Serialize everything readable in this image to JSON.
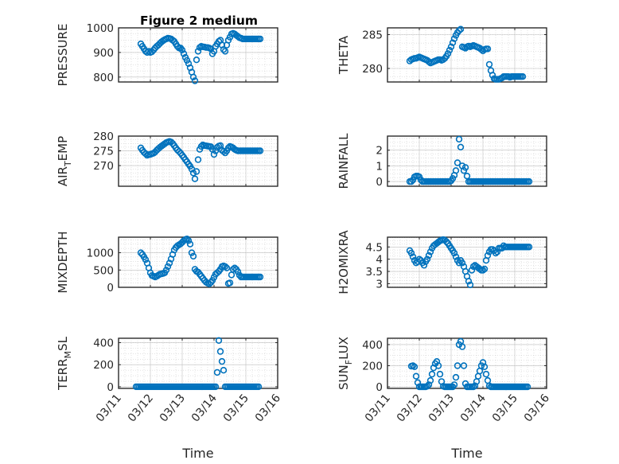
{
  "figure": {
    "title": "Figure 2 medium",
    "marker_color": "#0072bd",
    "x_date_ticks": [
      "03/11",
      "03/12",
      "03/13",
      "03/14",
      "03/15",
      "03/16"
    ],
    "x_label": "Time",
    "x_range": [
      0,
      5
    ]
  },
  "chart_data": [
    {
      "type": "scatter",
      "ylabel": "PRESSURE",
      "ylabel_sub": "",
      "ylim": [
        780,
        1000
      ],
      "yticks": [
        "800",
        "900",
        "1000"
      ],
      "ytick_values": [
        800,
        900,
        1000
      ],
      "grid": true,
      "x": [
        0.7,
        0.75,
        0.8,
        0.85,
        0.9,
        0.95,
        1.0,
        1.05,
        1.1,
        1.15,
        1.2,
        1.25,
        1.3,
        1.35,
        1.4,
        1.45,
        1.5,
        1.55,
        1.6,
        1.65,
        1.7,
        1.75,
        1.8,
        1.85,
        1.9,
        1.95,
        2.0,
        2.05,
        2.1,
        2.15,
        2.2,
        2.25,
        2.3,
        2.35,
        2.4,
        2.45,
        2.5,
        2.55,
        2.6,
        2.65,
        2.7,
        2.75,
        2.8,
        2.85,
        2.9,
        2.95,
        3.0,
        3.05,
        3.1,
        3.15,
        3.2,
        3.25,
        3.3,
        3.35,
        3.4,
        3.45,
        3.5,
        3.55,
        3.6,
        3.65,
        3.7,
        3.75,
        3.8,
        3.85,
        3.9,
        3.95,
        4.0,
        4.05,
        4.1,
        4.15,
        4.2,
        4.25,
        4.3,
        4.35,
        4.4,
        4.45
      ],
      "y": [
        935,
        925,
        915,
        905,
        900,
        905,
        900,
        903,
        910,
        918,
        925,
        930,
        937,
        943,
        948,
        952,
        955,
        958,
        957,
        955,
        950,
        945,
        935,
        925,
        918,
        918,
        910,
        895,
        880,
        868,
        855,
        838,
        820,
        800,
        785,
        870,
        905,
        920,
        925,
        923,
        922,
        920,
        920,
        918,
        915,
        895,
        905,
        925,
        935,
        945,
        950,
        930,
        912,
        905,
        930,
        950,
        962,
        975,
        978,
        975,
        970,
        965,
        960,
        958,
        955,
        955,
        955,
        955,
        955,
        955,
        955,
        955,
        955,
        955,
        955,
        955
      ]
    },
    {
      "type": "scatter",
      "ylabel": "THETA",
      "ylabel_sub": "",
      "ylim": [
        278,
        286
      ],
      "yticks": [
        "280",
        "285"
      ],
      "ytick_values": [
        280,
        285
      ],
      "grid": true,
      "x": [
        0.7,
        0.75,
        0.8,
        0.85,
        0.9,
        0.95,
        1.0,
        1.05,
        1.1,
        1.15,
        1.2,
        1.25,
        1.3,
        1.35,
        1.4,
        1.45,
        1.5,
        1.55,
        1.6,
        1.65,
        1.7,
        1.75,
        1.8,
        1.85,
        1.9,
        1.95,
        2.0,
        2.05,
        2.1,
        2.15,
        2.2,
        2.25,
        2.3,
        2.35,
        2.4,
        2.45,
        2.5,
        2.55,
        2.6,
        2.65,
        2.7,
        2.75,
        2.8,
        2.85,
        2.9,
        2.95,
        3.0,
        3.05,
        3.1,
        3.15,
        3.2,
        3.25,
        3.3,
        3.35,
        3.4,
        3.45,
        3.5,
        3.55,
        3.6,
        3.65,
        3.7,
        3.75,
        3.8,
        3.85,
        3.9,
        3.95,
        4.0,
        4.05,
        4.1,
        4.15,
        4.2,
        4.25
      ],
      "y": [
        281.1,
        281.3,
        281.4,
        281.5,
        281.5,
        281.6,
        281.7,
        281.6,
        281.5,
        281.4,
        281.3,
        281.2,
        281.0,
        280.8,
        280.9,
        281.0,
        281.1,
        281.2,
        281.3,
        281.3,
        281.2,
        281.3,
        281.5,
        281.8,
        282.2,
        282.7,
        283.2,
        283.8,
        284.4,
        284.9,
        285.3,
        285.6,
        285.8,
        283.2,
        283.1,
        283.0,
        283.2,
        283.3,
        283.2,
        283.3,
        283.4,
        283.3,
        283.2,
        283.1,
        283.0,
        282.8,
        282.6,
        282.8,
        282.9,
        282.9,
        280.6,
        279.7,
        279.0,
        278.5,
        278.4,
        278.4,
        278.4,
        278.5,
        278.6,
        278.8,
        278.8,
        278.8,
        278.8,
        278.7,
        278.8,
        278.8,
        278.8,
        278.8,
        278.8,
        278.8,
        278.8,
        278.8
      ]
    },
    {
      "type": "scatter",
      "ylabel": "AIR",
      "ylabel_sub": "T",
      "ylabel_rest": "EMP",
      "ylim": [
        263,
        280
      ],
      "yticks": [
        "270",
        "275",
        "280"
      ],
      "ytick_values": [
        270,
        275,
        280
      ],
      "grid": true,
      "x": [
        0.7,
        0.75,
        0.8,
        0.85,
        0.9,
        0.95,
        1.0,
        1.05,
        1.1,
        1.15,
        1.2,
        1.25,
        1.3,
        1.35,
        1.4,
        1.45,
        1.5,
        1.55,
        1.6,
        1.65,
        1.7,
        1.75,
        1.8,
        1.85,
        1.9,
        1.95,
        2.0,
        2.05,
        2.1,
        2.15,
        2.2,
        2.25,
        2.3,
        2.35,
        2.4,
        2.45,
        2.5,
        2.55,
        2.6,
        2.65,
        2.7,
        2.75,
        2.8,
        2.85,
        2.9,
        2.95,
        3.0,
        3.05,
        3.1,
        3.15,
        3.2,
        3.25,
        3.3,
        3.35,
        3.4,
        3.45,
        3.5,
        3.55,
        3.6,
        3.65,
        3.7,
        3.75,
        3.8,
        3.85,
        3.9,
        3.95,
        4.0,
        4.05,
        4.1,
        4.15,
        4.2,
        4.25,
        4.3,
        4.35,
        4.4,
        4.45
      ],
      "y": [
        276.0,
        275.2,
        274.5,
        274.0,
        273.5,
        273.7,
        273.8,
        274.0,
        274.2,
        274.6,
        275.2,
        275.7,
        276.2,
        276.6,
        277.0,
        277.4,
        277.8,
        278.0,
        278.2,
        278.0,
        277.5,
        276.8,
        276.0,
        275.3,
        274.8,
        274.2,
        273.5,
        272.8,
        272.0,
        271.3,
        270.5,
        269.8,
        268.8,
        267.5,
        265.5,
        268.0,
        272.0,
        275.5,
        276.5,
        277.0,
        276.8,
        276.7,
        276.6,
        276.5,
        276.4,
        275.5,
        273.8,
        275.0,
        276.2,
        276.6,
        276.8,
        275.2,
        274.8,
        274.3,
        275.0,
        276.0,
        276.5,
        276.3,
        276.0,
        275.5,
        275.2,
        275.0,
        275.0,
        275.0,
        275.0,
        275.0,
        275.0,
        275.0,
        275.0,
        275.0,
        275.0,
        275.0,
        275.0,
        275.0,
        275.0,
        275.0
      ]
    },
    {
      "type": "scatter",
      "ylabel": "RAINFALL",
      "ylabel_sub": "",
      "ylim": [
        -0.3,
        2.9
      ],
      "yticks": [
        "0",
        "1",
        "2"
      ],
      "ytick_values": [
        0,
        1,
        2
      ],
      "grid": true,
      "x": [
        0.7,
        0.75,
        0.8,
        0.85,
        0.9,
        0.95,
        1.0,
        1.05,
        1.1,
        1.15,
        1.2,
        1.25,
        1.3,
        1.35,
        1.4,
        1.45,
        1.5,
        1.55,
        1.6,
        1.65,
        1.7,
        1.75,
        1.8,
        1.85,
        1.9,
        1.95,
        2.0,
        2.05,
        2.1,
        2.15,
        2.2,
        2.25,
        2.3,
        2.35,
        2.4,
        2.45,
        2.5,
        2.55,
        2.6,
        2.65,
        2.7,
        2.75,
        2.8,
        2.85,
        2.9,
        2.95,
        3.0,
        3.05,
        3.1,
        3.15,
        3.2,
        3.25,
        3.3,
        3.35,
        3.4,
        3.45,
        3.5,
        3.55,
        3.6,
        3.65,
        3.7,
        3.75,
        3.8,
        3.85,
        3.9,
        3.95,
        4.0,
        4.05,
        4.1,
        4.15,
        4.2,
        4.25,
        4.3,
        4.35,
        4.4,
        4.45
      ],
      "y": [
        0,
        0,
        0.1,
        0.3,
        0.35,
        0.35,
        0.3,
        0.1,
        0,
        0,
        0,
        0,
        0,
        0,
        0,
        0,
        0,
        0,
        0,
        0,
        0,
        0,
        0,
        0,
        0,
        0,
        0.05,
        0.2,
        0.4,
        0.7,
        1.2,
        2.7,
        2.2,
        1.0,
        0.7,
        0.9,
        0.35,
        0,
        0,
        0,
        0,
        0,
        0,
        0,
        0,
        0,
        0,
        0,
        0,
        0,
        0,
        0,
        0,
        0,
        0,
        0,
        0,
        0,
        0,
        0,
        0,
        0,
        0,
        0,
        0,
        0,
        0,
        0,
        0,
        0,
        0,
        0,
        0,
        0,
        0,
        0
      ]
    },
    {
      "type": "scatter",
      "ylabel": "MIXDEPTH",
      "ylabel_sub": "",
      "ylim": [
        0,
        1450
      ],
      "yticks": [
        "0",
        "500",
        "1000"
      ],
      "ytick_values": [
        0,
        500,
        1000
      ],
      "grid": true,
      "x": [
        0.7,
        0.75,
        0.8,
        0.85,
        0.9,
        0.95,
        1.0,
        1.05,
        1.1,
        1.15,
        1.2,
        1.25,
        1.3,
        1.35,
        1.4,
        1.45,
        1.5,
        1.55,
        1.6,
        1.65,
        1.7,
        1.75,
        1.8,
        1.85,
        1.9,
        1.95,
        2.0,
        2.05,
        2.1,
        2.15,
        2.2,
        2.25,
        2.3,
        2.35,
        2.4,
        2.45,
        2.5,
        2.55,
        2.6,
        2.65,
        2.7,
        2.75,
        2.8,
        2.85,
        2.9,
        2.95,
        3.0,
        3.05,
        3.1,
        3.15,
        3.2,
        3.25,
        3.3,
        3.35,
        3.4,
        3.45,
        3.5,
        3.55,
        3.6,
        3.65,
        3.7,
        3.75,
        3.8,
        3.85,
        3.9,
        3.95,
        4.0,
        4.05,
        4.1,
        4.15,
        4.2,
        4.25,
        4.3,
        4.35,
        4.4,
        4.45
      ],
      "y": [
        1000,
        950,
        880,
        800,
        700,
        560,
        420,
        340,
        320,
        300,
        320,
        350,
        380,
        390,
        400,
        420,
        500,
        600,
        700,
        820,
        950,
        1080,
        1150,
        1200,
        1230,
        1260,
        1300,
        1350,
        1380,
        1400,
        1350,
        1250,
        1000,
        900,
        520,
        460,
        440,
        380,
        320,
        260,
        200,
        150,
        120,
        100,
        140,
        200,
        290,
        380,
        420,
        460,
        520,
        600,
        620,
        600,
        560,
        110,
        130,
        360,
        520,
        560,
        520,
        450,
        350,
        300,
        300,
        300,
        300,
        300,
        300,
        300,
        300,
        300,
        300,
        300,
        300,
        300
      ]
    },
    {
      "type": "scatter",
      "ylabel": "H2OMIXRA",
      "ylabel_sub": "",
      "ylim": [
        2.85,
        4.9
      ],
      "yticks": [
        "3",
        "3.5",
        "4",
        "4.5"
      ],
      "ytick_values": [
        3,
        3.5,
        4,
        4.5
      ],
      "grid": true,
      "x": [
        0.7,
        0.75,
        0.8,
        0.85,
        0.9,
        0.95,
        1.0,
        1.05,
        1.1,
        1.15,
        1.2,
        1.25,
        1.3,
        1.35,
        1.4,
        1.45,
        1.5,
        1.55,
        1.6,
        1.65,
        1.7,
        1.75,
        1.8,
        1.85,
        1.9,
        1.95,
        2.0,
        2.05,
        2.1,
        2.15,
        2.2,
        2.25,
        2.3,
        2.35,
        2.4,
        2.45,
        2.5,
        2.55,
        2.6,
        2.65,
        2.7,
        2.75,
        2.8,
        2.85,
        2.9,
        2.95,
        3.0,
        3.05,
        3.1,
        3.15,
        3.2,
        3.25,
        3.3,
        3.35,
        3.4,
        3.45,
        3.5,
        3.55,
        3.6,
        3.65,
        3.7,
        3.75,
        3.8,
        3.85,
        3.9,
        3.95,
        4.0,
        4.05,
        4.1,
        4.15,
        4.2,
        4.25,
        4.3,
        4.35,
        4.4,
        4.45
      ],
      "y": [
        4.35,
        4.25,
        4.1,
        3.95,
        3.85,
        3.9,
        4.0,
        3.95,
        3.85,
        3.75,
        3.9,
        4.0,
        4.15,
        4.3,
        4.45,
        4.55,
        4.6,
        4.65,
        4.7,
        4.75,
        4.78,
        4.8,
        4.78,
        4.72,
        4.65,
        4.55,
        4.45,
        4.35,
        4.25,
        4.1,
        3.95,
        3.85,
        3.95,
        3.85,
        3.7,
        3.5,
        3.3,
        3.1,
        2.95,
        3.55,
        3.7,
        3.75,
        3.7,
        3.65,
        3.6,
        3.55,
        3.55,
        3.6,
        3.95,
        4.15,
        4.3,
        4.4,
        4.4,
        4.35,
        4.25,
        4.3,
        4.45,
        4.45,
        4.45,
        4.55,
        4.5,
        4.5,
        4.5,
        4.5,
        4.5,
        4.5,
        4.5,
        4.5,
        4.5,
        4.5,
        4.5,
        4.5,
        4.5,
        4.5,
        4.5,
        4.5
      ]
    },
    {
      "type": "scatter",
      "ylabel": "TERR",
      "ylabel_sub": "M",
      "ylabel_rest": "SL",
      "ylim": [
        -15,
        440
      ],
      "yticks": [
        "0",
        "200",
        "400"
      ],
      "ytick_values": [
        0,
        200,
        400
      ],
      "grid": true,
      "x": [
        0.55,
        0.6,
        0.65,
        0.7,
        0.75,
        0.8,
        0.85,
        0.9,
        0.95,
        1.0,
        1.05,
        1.1,
        1.15,
        1.2,
        1.25,
        1.3,
        1.35,
        1.4,
        1.45,
        1.5,
        1.55,
        1.6,
        1.65,
        1.7,
        1.75,
        1.8,
        1.85,
        1.9,
        1.95,
        2.0,
        2.05,
        2.1,
        2.15,
        2.2,
        2.25,
        2.3,
        2.35,
        2.4,
        2.45,
        2.5,
        2.55,
        2.6,
        2.65,
        2.7,
        2.75,
        2.8,
        2.85,
        2.9,
        2.95,
        3.0,
        3.05,
        3.1,
        3.15,
        3.2,
        3.25,
        3.3,
        3.35,
        3.4,
        3.45,
        3.5,
        3.55,
        3.6,
        3.65,
        3.7,
        3.75,
        3.8,
        3.85,
        3.9,
        3.95,
        4.0,
        4.05,
        4.1,
        4.15,
        4.2,
        4.25,
        4.3,
        4.35,
        4.4
      ],
      "y": [
        0,
        0,
        0,
        0,
        0,
        0,
        0,
        0,
        0,
        0,
        0,
        0,
        0,
        0,
        0,
        0,
        0,
        0,
        0,
        0,
        0,
        0,
        0,
        0,
        0,
        0,
        0,
        0,
        0,
        0,
        0,
        0,
        0,
        0,
        0,
        0,
        0,
        0,
        0,
        0,
        0,
        0,
        0,
        0,
        0,
        0,
        0,
        0,
        0,
        0,
        0,
        130,
        420,
        320,
        230,
        150,
        0,
        0,
        0,
        0,
        0,
        0,
        0,
        0,
        0,
        0,
        0,
        0,
        0,
        0,
        0,
        0,
        0,
        0,
        0,
        0,
        0,
        0
      ]
    },
    {
      "type": "scatter",
      "ylabel": "SUN",
      "ylabel_sub": "F",
      "ylabel_rest": "LUX",
      "ylim": [
        -15,
        460
      ],
      "yticks": [
        "0",
        "200",
        "400"
      ],
      "ytick_values": [
        0,
        200,
        400
      ],
      "grid": true,
      "x": [
        0.75,
        0.8,
        0.85,
        0.9,
        0.95,
        1.0,
        1.05,
        1.1,
        1.15,
        1.2,
        1.25,
        1.3,
        1.35,
        1.4,
        1.45,
        1.5,
        1.55,
        1.6,
        1.65,
        1.7,
        1.75,
        1.8,
        1.85,
        1.9,
        1.95,
        2.0,
        2.05,
        2.1,
        2.15,
        2.2,
        2.25,
        2.3,
        2.35,
        2.4,
        2.45,
        2.5,
        2.55,
        2.6,
        2.65,
        2.7,
        2.75,
        2.8,
        2.85,
        2.9,
        2.95,
        3.0,
        3.05,
        3.1,
        3.15,
        3.2,
        3.25,
        3.3,
        3.35,
        3.4,
        3.45,
        3.5,
        3.55,
        3.6,
        3.65,
        3.7,
        3.75,
        3.8,
        3.85,
        3.9,
        3.95,
        4.0,
        4.05,
        4.1,
        4.15,
        4.2,
        4.25,
        4.3,
        4.35,
        4.4
      ],
      "y": [
        195,
        200,
        190,
        100,
        40,
        0,
        0,
        0,
        0,
        0,
        5,
        20,
        60,
        120,
        180,
        220,
        240,
        200,
        120,
        50,
        5,
        0,
        0,
        0,
        0,
        0,
        0,
        20,
        90,
        200,
        400,
        430,
        380,
        200,
        30,
        0,
        0,
        0,
        0,
        0,
        10,
        50,
        100,
        150,
        200,
        230,
        190,
        120,
        60,
        10,
        0,
        0,
        0,
        0,
        0,
        0,
        0,
        0,
        0,
        0,
        0,
        0,
        0,
        0,
        0,
        0,
        0,
        0,
        0,
        0,
        0,
        0,
        0,
        0
      ]
    }
  ]
}
